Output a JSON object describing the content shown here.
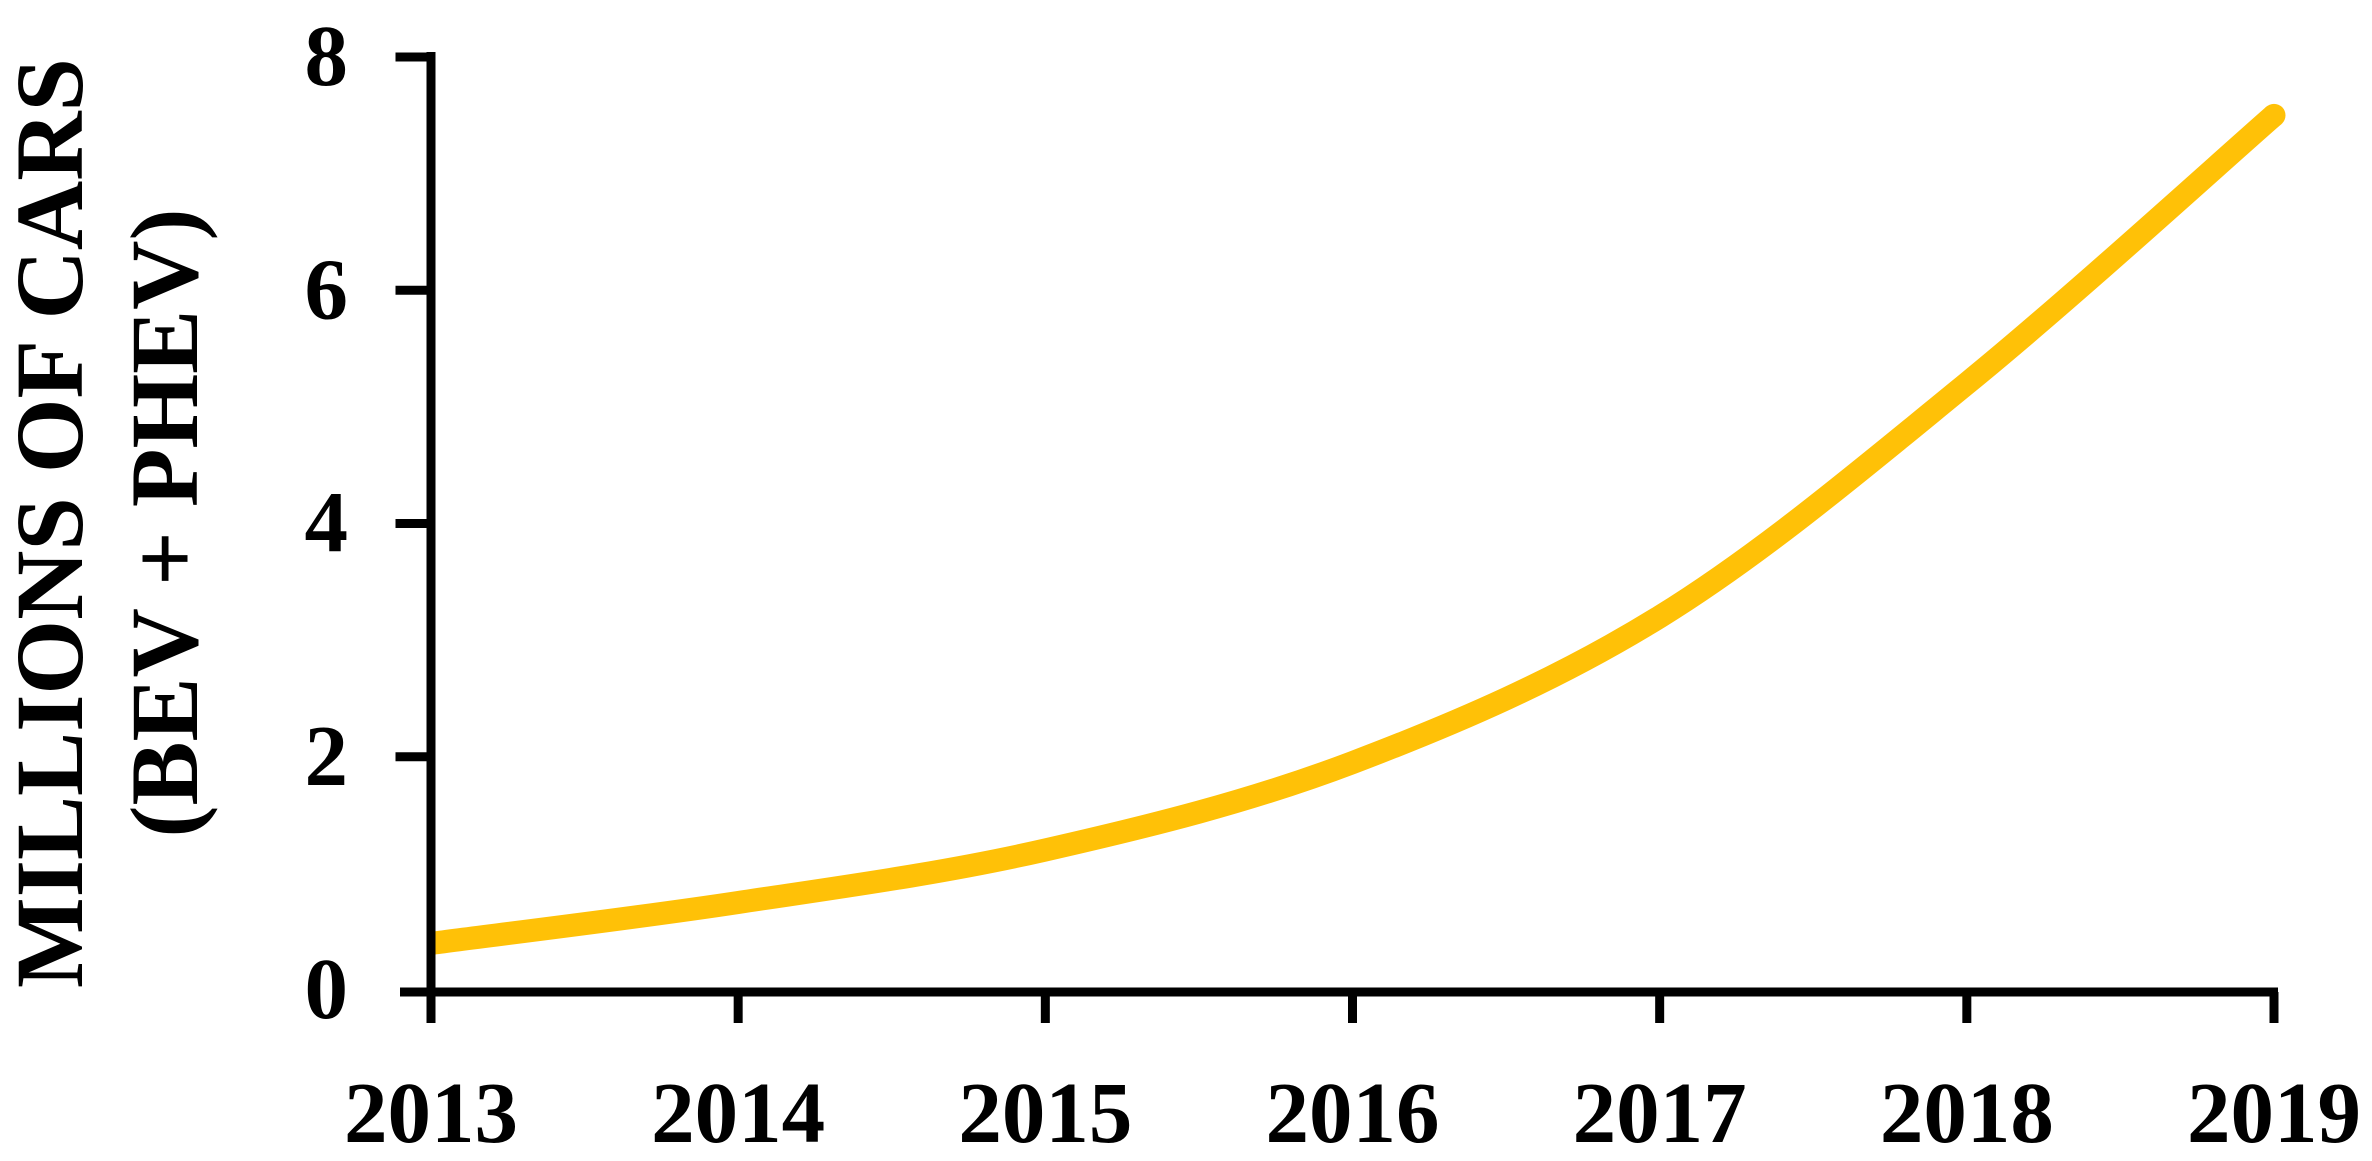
{
  "chart_data": {
    "type": "line",
    "title": "",
    "x": [
      2013,
      2014,
      2015,
      2016,
      2017,
      2018,
      2019
    ],
    "series": [
      {
        "name": "BEV + PHEV",
        "values": [
          0.4,
          0.75,
          1.2,
          1.95,
          3.2,
          5.2,
          7.5
        ]
      }
    ],
    "xticks": [
      "2013",
      "2014",
      "2015",
      "2016",
      "2017",
      "2018",
      "2019"
    ],
    "yticks": [
      "0",
      "2",
      "4",
      "6",
      "8"
    ],
    "ytick_values": [
      0,
      2,
      4,
      6,
      8
    ],
    "xlim": [
      2013,
      2019
    ],
    "ylim": [
      0,
      8
    ],
    "xlabel": "",
    "ylabel_line1": "MILLIONS OF CARS",
    "ylabel_line2": "(BEV + PHEV)",
    "grid": false,
    "legend_position": "none",
    "line_color": "#FFC107",
    "axis_color": "#000000",
    "background_color": "#FFFFFF"
  }
}
